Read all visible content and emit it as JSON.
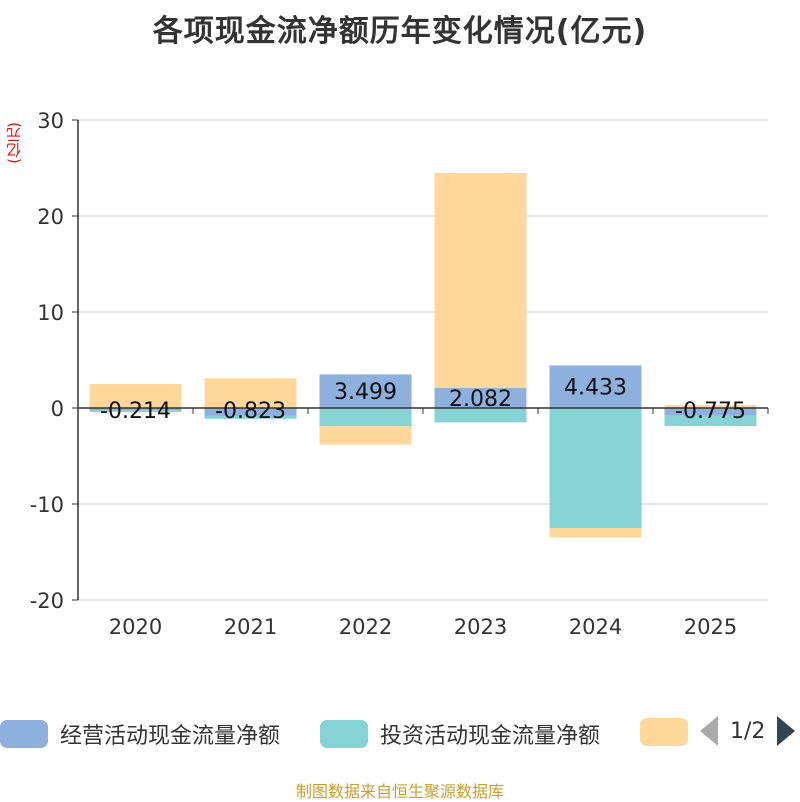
{
  "title": "各项现金流净额历年变化情况(亿元)",
  "unit": "(亿元)",
  "source": "制图数据来自恒生聚源数据库",
  "chart_data": {
    "type": "bar",
    "stacked": true,
    "title": "各项现金流净额历年变化情况(亿元)",
    "ylabel": "(亿元)",
    "xlabel": "",
    "ylim": [
      -20,
      30
    ],
    "yticks": [
      30,
      20,
      10,
      0,
      -10,
      -20
    ],
    "grid": true,
    "categories": [
      "2020",
      "2021",
      "2022",
      "2023",
      "2024",
      "2025"
    ],
    "series": [
      {
        "name": "经营活动现金流量净额",
        "color": "#8eb0dc",
        "values": [
          -0.214,
          -0.823,
          3.499,
          2.082,
          4.433,
          -0.775
        ],
        "labels": [
          "-0.214",
          "-0.823",
          "3.499",
          "2.082",
          "4.433",
          "-0.775"
        ]
      },
      {
        "name": "投资活动现金流量净额",
        "color": "#86d3d6",
        "values": [
          -0.2,
          -0.3,
          -1.9,
          -1.5,
          -12.5,
          -1.1
        ]
      },
      {
        "name": "",
        "color": "#fdd89a",
        "values": [
          2.5,
          3.1,
          -1.9,
          22.4,
          -1.0,
          0.3
        ]
      }
    ]
  },
  "legend": {
    "items": [
      {
        "label": "经营活动现金流量净额",
        "color": "#8eb0dc"
      },
      {
        "label": "投资活动现金流量净额",
        "color": "#86d3d6"
      },
      {
        "label": "",
        "color": "#fdd89a"
      }
    ],
    "page": "1/2"
  }
}
